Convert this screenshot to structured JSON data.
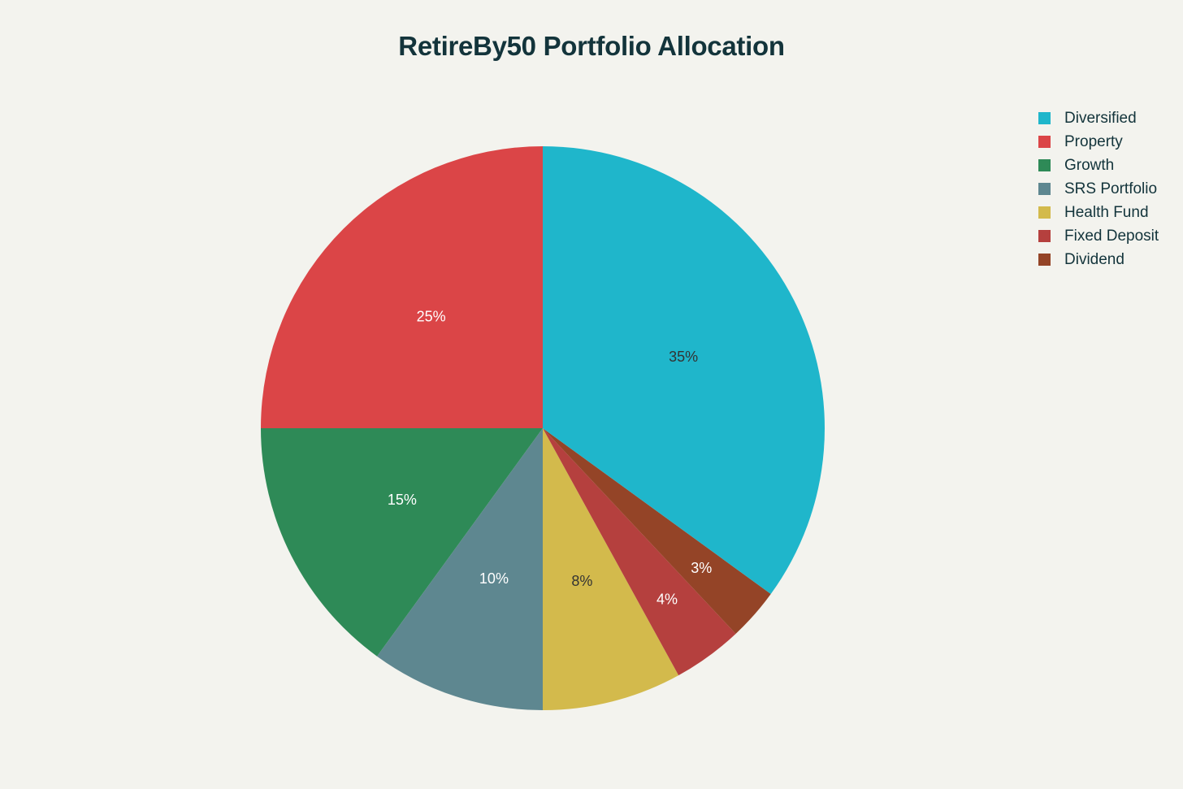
{
  "title": "RetireBy50 Portfolio Allocation",
  "chart_data": {
    "type": "pie",
    "title": "RetireBy50 Portfolio Allocation",
    "categories": [
      "Diversified",
      "Property",
      "Growth",
      "SRS Portfolio",
      "Health Fund",
      "Fixed Deposit",
      "Dividend"
    ],
    "values": [
      35,
      25,
      15,
      10,
      8,
      4,
      3
    ],
    "labels": [
      "35%",
      "25%",
      "15%",
      "10%",
      "8%",
      "4%",
      "3%"
    ],
    "colors": [
      "#1fb6cb",
      "#db4547",
      "#2e8a57",
      "#5e8790",
      "#d3ba4c",
      "#b5403e",
      "#944427"
    ],
    "label_colors": [
      "#333333",
      "#ffffff",
      "#ffffff",
      "#ffffff",
      "#333333",
      "#ffffff",
      "#ffffff"
    ],
    "legend_position": "right",
    "direction": "counterclockwise",
    "start_angle_deg": 90,
    "center": [
      668,
      527
    ],
    "radius": 347
  },
  "legend": {
    "items": [
      {
        "label": "Diversified",
        "color": "#1fb6cb"
      },
      {
        "label": "Property",
        "color": "#db4547"
      },
      {
        "label": "Growth",
        "color": "#2e8a57"
      },
      {
        "label": "SRS Portfolio",
        "color": "#5e8790"
      },
      {
        "label": "Health Fund",
        "color": "#d3ba4c"
      },
      {
        "label": "Fixed Deposit",
        "color": "#b5403e"
      },
      {
        "label": "Dividend",
        "color": "#944427"
      }
    ]
  }
}
